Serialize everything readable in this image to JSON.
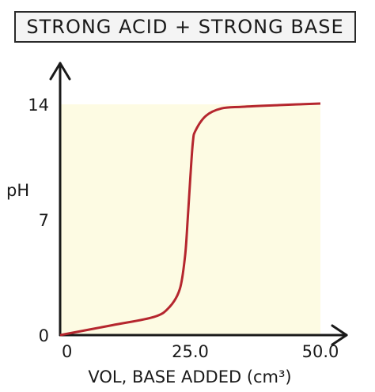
{
  "chart_data": {
    "type": "line",
    "title": "STRONG ACID + STRONG BASE",
    "xlabel": "VOL, BASE ADDED (cm³)",
    "ylabel": "pH",
    "xlim": [
      0,
      50
    ],
    "ylim": [
      0,
      14
    ],
    "x_ticks": [
      "0",
      "25.0",
      "50.0"
    ],
    "y_ticks": [
      "0",
      "7",
      "14"
    ],
    "series": [
      {
        "color": "#b5262e",
        "x": [
          0,
          10,
          18,
          21,
          23,
          24,
          24.5,
          25,
          25.5,
          26,
          28,
          31,
          35,
          42,
          50
        ],
        "y": [
          0,
          0.6,
          1.1,
          1.7,
          2.8,
          4.8,
          7,
          9.5,
          11.7,
          12.4,
          13.3,
          13.75,
          13.85,
          13.95,
          14.05
        ]
      }
    ],
    "background": "#fdfbe3"
  }
}
